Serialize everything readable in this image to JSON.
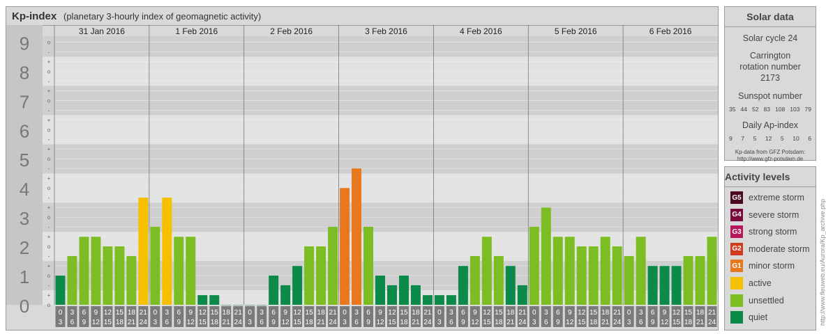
{
  "header": {
    "title": "Kp-index",
    "subtitle": "(planetary 3-hourly index of geomagnetic activity)"
  },
  "chart_data": {
    "type": "bar",
    "title": "Kp-index",
    "ylim": [
      0,
      9
    ],
    "y_ticks": [
      "0",
      "1",
      "2",
      "3",
      "4",
      "5",
      "6",
      "7",
      "8",
      "9"
    ],
    "sub_ticks": [
      "o",
      "+",
      "-"
    ],
    "days": [
      "31 Jan 2016",
      "1 Feb 2016",
      "2 Feb 2016",
      "3 Feb 2016",
      "4 Feb 2016",
      "5 Feb 2016",
      "6 Feb 2016"
    ],
    "interval_starts": [
      "0",
      "3",
      "6",
      "9",
      "12",
      "15",
      "18",
      "21"
    ],
    "interval_ends": [
      "3",
      "6",
      "9",
      "12",
      "15",
      "18",
      "21",
      "24"
    ],
    "values": [
      [
        1,
        1.67,
        2.33,
        2.33,
        2,
        2,
        1.67,
        3.67
      ],
      [
        2.67,
        3.67,
        2.33,
        2.33,
        0.33,
        0.33,
        0,
        0
      ],
      [
        0,
        0,
        1,
        0.67,
        1.33,
        2,
        2,
        2.67
      ],
      [
        4,
        4.67,
        2.67,
        1,
        0.67,
        1,
        0.67,
        0.33
      ],
      [
        0.33,
        0.33,
        1.33,
        1.67,
        2.33,
        1.67,
        1.33,
        0.67
      ],
      [
        2.67,
        3.33,
        2.33,
        2.33,
        2,
        2,
        2.33,
        2
      ],
      [
        1.67,
        2.33,
        1.33,
        1.33,
        1.33,
        1.67,
        1.67,
        2.33
      ]
    ]
  },
  "solar": {
    "title": "Solar data",
    "cycle": "Solar cycle 24",
    "carrington": "Carrington rotation number 2173",
    "sunspot_label": "Sunspot number",
    "sunspot_values": [
      "35",
      "44",
      "52",
      "83",
      "108",
      "103",
      "79"
    ],
    "ap_label": "Daily Ap-index",
    "ap_values": [
      "9",
      "7",
      "5",
      "12",
      "5",
      "10",
      "6"
    ],
    "source_line1": "Kp-data from GFZ Potsdam:",
    "source_line2": "http://www.gfz-potsdam.de"
  },
  "levels": {
    "title": "Activity levels",
    "items": [
      {
        "badge": "G5",
        "label": "extreme storm",
        "color": "#4d0a1f"
      },
      {
        "badge": "G4",
        "label": "severe storm",
        "color": "#7a0a3a"
      },
      {
        "badge": "G3",
        "label": "strong storm",
        "color": "#b5175a"
      },
      {
        "badge": "G2",
        "label": "moderate storm",
        "color": "#d23c1e"
      },
      {
        "badge": "G1",
        "label": "minor storm",
        "color": "#e8781e"
      },
      {
        "badge": "",
        "label": "active",
        "color": "#f5c000"
      },
      {
        "badge": "",
        "label": "unsettled",
        "color": "#7cbd24"
      },
      {
        "badge": "",
        "label": "quiet",
        "color": "#0b8a4a"
      }
    ]
  },
  "credit": "http://www.fleuweb.eu/Aurora/Kp_archive.php"
}
